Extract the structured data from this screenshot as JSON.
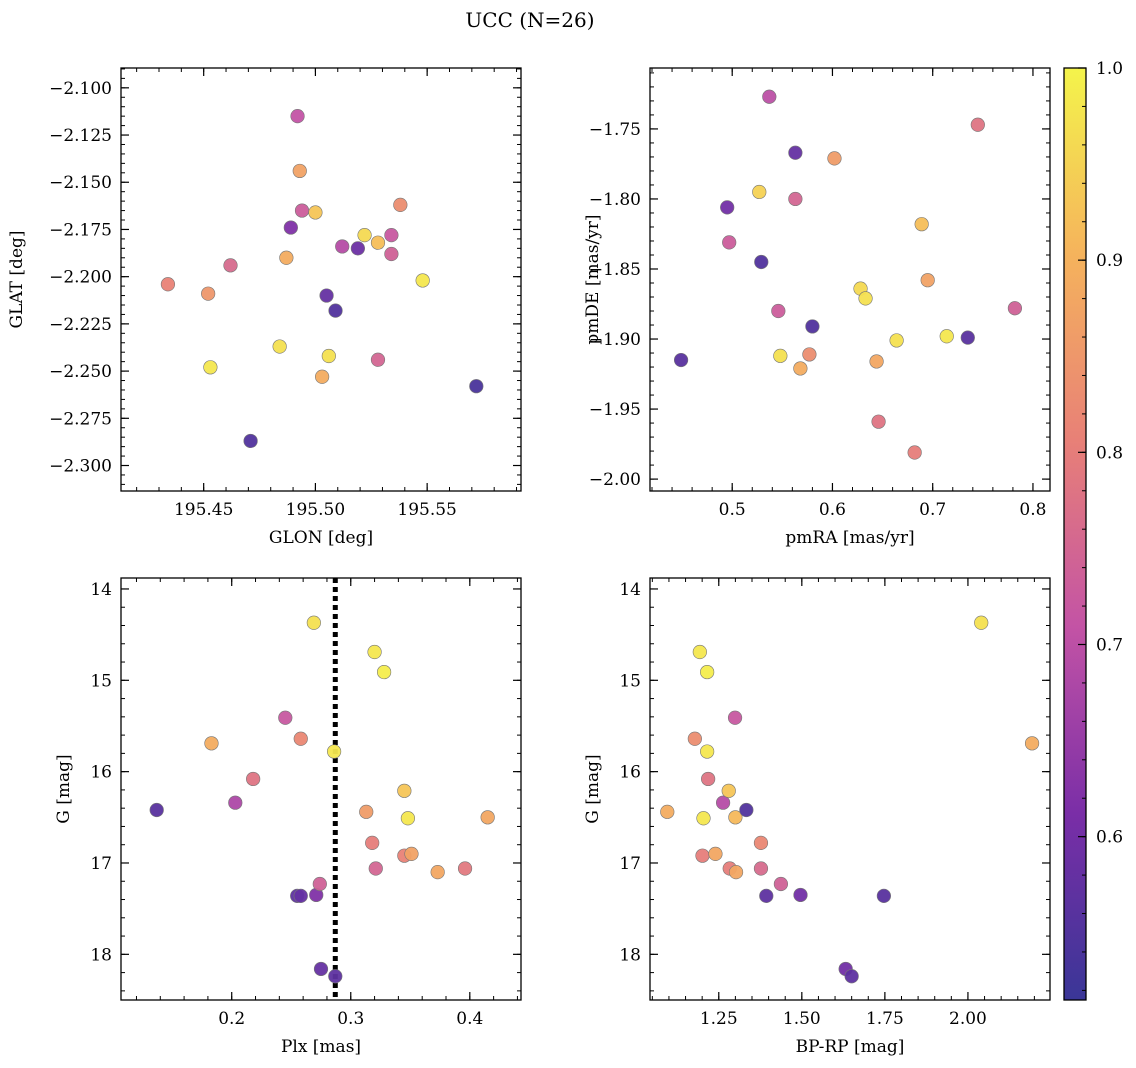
{
  "title": "UCC (N=26)",
  "colormap": {
    "name": "plasma",
    "stops": [
      "#3a3697",
      "#7a2ea7",
      "#c353a5",
      "#e88077",
      "#f5b35c",
      "#f4f44b"
    ],
    "range": [
      0.515,
      1.0
    ],
    "ticks": [
      0.6,
      0.7,
      0.8,
      0.9,
      1.0
    ],
    "tick_labels": [
      "0.6",
      "0.7",
      "0.8",
      "0.9",
      "1.0"
    ]
  },
  "chart_data": [
    {
      "type": "scatter",
      "panel": "glon-glat",
      "xlabel": "GLON [deg]",
      "ylabel": "GLAT [deg]",
      "xlim": [
        195.413,
        195.592
      ],
      "ylim": [
        -2.3135,
        -2.0895
      ],
      "invert_y": false,
      "xticks": [
        195.45,
        195.5,
        195.55
      ],
      "xtick_labels": [
        "195.45",
        "195.50",
        "195.55"
      ],
      "yticks": [
        -2.1,
        -2.125,
        -2.15,
        -2.175,
        -2.2,
        -2.225,
        -2.25,
        -2.275,
        -2.3
      ],
      "ytick_labels": [
        "−2.100",
        "−2.125",
        "−2.150",
        "−2.175",
        "−2.200",
        "−2.225",
        "−2.250",
        "−2.275",
        "−2.300"
      ],
      "points": [
        {
          "x": 195.434,
          "y": -2.204,
          "c": 0.81
        },
        {
          "x": 195.452,
          "y": -2.209,
          "c": 0.85
        },
        {
          "x": 195.453,
          "y": -2.248,
          "c": 0.98
        },
        {
          "x": 195.462,
          "y": -2.194,
          "c": 0.76
        },
        {
          "x": 195.471,
          "y": -2.287,
          "c": 0.55
        },
        {
          "x": 195.484,
          "y": -2.237,
          "c": 0.97
        },
        {
          "x": 195.487,
          "y": -2.19,
          "c": 0.89
        },
        {
          "x": 195.489,
          "y": -2.174,
          "c": 0.62
        },
        {
          "x": 195.492,
          "y": -2.115,
          "c": 0.71
        },
        {
          "x": 195.493,
          "y": -2.144,
          "c": 0.87
        },
        {
          "x": 195.494,
          "y": -2.165,
          "c": 0.73
        },
        {
          "x": 195.5,
          "y": -2.166,
          "c": 0.93
        },
        {
          "x": 195.503,
          "y": -2.253,
          "c": 0.89
        },
        {
          "x": 195.505,
          "y": -2.21,
          "c": 0.58
        },
        {
          "x": 195.506,
          "y": -2.242,
          "c": 0.97
        },
        {
          "x": 195.509,
          "y": -2.218,
          "c": 0.55
        },
        {
          "x": 195.512,
          "y": -2.184,
          "c": 0.69
        },
        {
          "x": 195.519,
          "y": -2.185,
          "c": 0.59
        },
        {
          "x": 195.522,
          "y": -2.178,
          "c": 0.96
        },
        {
          "x": 195.528,
          "y": -2.182,
          "c": 0.92
        },
        {
          "x": 195.528,
          "y": -2.244,
          "c": 0.75
        },
        {
          "x": 195.534,
          "y": -2.178,
          "c": 0.72
        },
        {
          "x": 195.534,
          "y": -2.188,
          "c": 0.74
        },
        {
          "x": 195.538,
          "y": -2.162,
          "c": 0.83
        },
        {
          "x": 195.548,
          "y": -2.202,
          "c": 0.98
        },
        {
          "x": 195.572,
          "y": -2.258,
          "c": 0.54
        }
      ]
    },
    {
      "type": "scatter",
      "panel": "pmra-pmde",
      "xlabel": "pmRA [mas/yr]",
      "ylabel": "pmDE [mas/yr]",
      "xlim": [
        0.418,
        0.817
      ],
      "ylim": [
        -2.0085,
        -1.7065
      ],
      "invert_y": false,
      "xticks": [
        0.5,
        0.6,
        0.7,
        0.8
      ],
      "xtick_labels": [
        "0.5",
        "0.6",
        "0.7",
        "0.8"
      ],
      "yticks": [
        -1.75,
        -1.8,
        -1.85,
        -1.9,
        -1.95,
        -2.0
      ],
      "ytick_labels": [
        "−1.75",
        "−1.80",
        "−1.85",
        "−1.90",
        "−1.95",
        "−2.00"
      ],
      "points": [
        {
          "x": 0.449,
          "y": -1.915,
          "c": 0.56
        },
        {
          "x": 0.495,
          "y": -1.806,
          "c": 0.6
        },
        {
          "x": 0.497,
          "y": -1.831,
          "c": 0.73
        },
        {
          "x": 0.527,
          "y": -1.795,
          "c": 0.95
        },
        {
          "x": 0.529,
          "y": -1.845,
          "c": 0.55
        },
        {
          "x": 0.537,
          "y": -1.727,
          "c": 0.7
        },
        {
          "x": 0.546,
          "y": -1.88,
          "c": 0.73
        },
        {
          "x": 0.548,
          "y": -1.912,
          "c": 0.97
        },
        {
          "x": 0.563,
          "y": -1.767,
          "c": 0.58
        },
        {
          "x": 0.563,
          "y": -1.8,
          "c": 0.75
        },
        {
          "x": 0.568,
          "y": -1.921,
          "c": 0.89
        },
        {
          "x": 0.577,
          "y": -1.911,
          "c": 0.83
        },
        {
          "x": 0.58,
          "y": -1.891,
          "c": 0.55
        },
        {
          "x": 0.602,
          "y": -1.771,
          "c": 0.86
        },
        {
          "x": 0.628,
          "y": -1.864,
          "c": 0.96
        },
        {
          "x": 0.633,
          "y": -1.871,
          "c": 0.97
        },
        {
          "x": 0.644,
          "y": -1.916,
          "c": 0.88
        },
        {
          "x": 0.646,
          "y": -1.959,
          "c": 0.78
        },
        {
          "x": 0.664,
          "y": -1.901,
          "c": 0.97
        },
        {
          "x": 0.682,
          "y": -1.981,
          "c": 0.8
        },
        {
          "x": 0.689,
          "y": -1.818,
          "c": 0.92
        },
        {
          "x": 0.695,
          "y": -1.858,
          "c": 0.87
        },
        {
          "x": 0.714,
          "y": -1.898,
          "c": 0.98
        },
        {
          "x": 0.735,
          "y": -1.899,
          "c": 0.56
        },
        {
          "x": 0.745,
          "y": -1.747,
          "c": 0.78
        },
        {
          "x": 0.782,
          "y": -1.878,
          "c": 0.74
        }
      ]
    },
    {
      "type": "scatter",
      "panel": "plx-g",
      "xlabel": "Plx [mas]",
      "ylabel": "G [mag]",
      "xlim": [
        0.107,
        0.443
      ],
      "ylim": [
        13.88,
        18.5
      ],
      "invert_y": true,
      "vline": {
        "x": 0.287,
        "style": "dotted"
      },
      "xticks": [
        0.2,
        0.3,
        0.4
      ],
      "xtick_labels": [
        "0.2",
        "0.3",
        "0.4"
      ],
      "yticks": [
        14,
        15,
        16,
        17,
        18
      ],
      "ytick_labels": [
        "14",
        "15",
        "16",
        "17",
        "18"
      ],
      "points": [
        {
          "x": 0.137,
          "y": 16.42,
          "c": 0.56
        },
        {
          "x": 0.183,
          "y": 15.69,
          "c": 0.89
        },
        {
          "x": 0.203,
          "y": 16.34,
          "c": 0.68
        },
        {
          "x": 0.218,
          "y": 16.08,
          "c": 0.78
        },
        {
          "x": 0.245,
          "y": 15.41,
          "c": 0.72
        },
        {
          "x": 0.255,
          "y": 17.36,
          "c": 0.57
        },
        {
          "x": 0.258,
          "y": 17.36,
          "c": 0.58
        },
        {
          "x": 0.258,
          "y": 15.64,
          "c": 0.82
        },
        {
          "x": 0.269,
          "y": 14.37,
          "c": 0.97
        },
        {
          "x": 0.271,
          "y": 17.35,
          "c": 0.62
        },
        {
          "x": 0.274,
          "y": 17.23,
          "c": 0.74
        },
        {
          "x": 0.275,
          "y": 18.16,
          "c": 0.58
        },
        {
          "x": 0.286,
          "y": 15.78,
          "c": 0.98
        },
        {
          "x": 0.287,
          "y": 18.24,
          "c": 0.57
        },
        {
          "x": 0.313,
          "y": 16.44,
          "c": 0.86
        },
        {
          "x": 0.318,
          "y": 16.78,
          "c": 0.8
        },
        {
          "x": 0.32,
          "y": 14.69,
          "c": 0.98
        },
        {
          "x": 0.321,
          "y": 17.06,
          "c": 0.75
        },
        {
          "x": 0.328,
          "y": 14.91,
          "c": 0.99
        },
        {
          "x": 0.345,
          "y": 16.21,
          "c": 0.93
        },
        {
          "x": 0.345,
          "y": 16.92,
          "c": 0.81
        },
        {
          "x": 0.348,
          "y": 16.51,
          "c": 0.98
        },
        {
          "x": 0.351,
          "y": 16.9,
          "c": 0.87
        },
        {
          "x": 0.373,
          "y": 17.1,
          "c": 0.88
        },
        {
          "x": 0.396,
          "y": 17.06,
          "c": 0.79
        },
        {
          "x": 0.415,
          "y": 16.5,
          "c": 0.88
        }
      ]
    },
    {
      "type": "scatter",
      "panel": "bprp-g",
      "xlabel": "BP-RP [mag]",
      "ylabel": "G [mag]",
      "xlim": [
        1.043,
        2.247
      ],
      "ylim": [
        13.88,
        18.5
      ],
      "invert_y": true,
      "xticks": [
        1.25,
        1.5,
        1.75,
        2.0
      ],
      "xtick_labels": [
        "1.25",
        "1.50",
        "1.75",
        "2.00"
      ],
      "yticks": [
        14,
        15,
        16,
        17,
        18
      ],
      "ytick_labels": [
        "14",
        "15",
        "16",
        "17",
        "18"
      ],
      "points": [
        {
          "x": 1.095,
          "y": 16.44,
          "c": 0.89
        },
        {
          "x": 1.178,
          "y": 15.64,
          "c": 0.83
        },
        {
          "x": 1.193,
          "y": 14.69,
          "c": 0.98
        },
        {
          "x": 1.201,
          "y": 16.92,
          "c": 0.8
        },
        {
          "x": 1.204,
          "y": 16.51,
          "c": 0.98
        },
        {
          "x": 1.215,
          "y": 14.91,
          "c": 0.99
        },
        {
          "x": 1.215,
          "y": 15.78,
          "c": 0.98
        },
        {
          "x": 1.218,
          "y": 16.08,
          "c": 0.78
        },
        {
          "x": 1.24,
          "y": 16.9,
          "c": 0.88
        },
        {
          "x": 1.263,
          "y": 16.34,
          "c": 0.69
        },
        {
          "x": 1.28,
          "y": 16.21,
          "c": 0.93
        },
        {
          "x": 1.283,
          "y": 17.06,
          "c": 0.8
        },
        {
          "x": 1.299,
          "y": 15.41,
          "c": 0.72
        },
        {
          "x": 1.3,
          "y": 16.5,
          "c": 0.91
        },
        {
          "x": 1.302,
          "y": 17.1,
          "c": 0.88
        },
        {
          "x": 1.333,
          "y": 16.42,
          "c": 0.55
        },
        {
          "x": 1.377,
          "y": 16.78,
          "c": 0.82
        },
        {
          "x": 1.377,
          "y": 17.06,
          "c": 0.76
        },
        {
          "x": 1.393,
          "y": 17.36,
          "c": 0.57
        },
        {
          "x": 1.437,
          "y": 17.23,
          "c": 0.74
        },
        {
          "x": 1.496,
          "y": 17.35,
          "c": 0.6
        },
        {
          "x": 1.632,
          "y": 18.16,
          "c": 0.6
        },
        {
          "x": 1.65,
          "y": 18.24,
          "c": 0.57
        },
        {
          "x": 1.747,
          "y": 17.36,
          "c": 0.56
        },
        {
          "x": 2.04,
          "y": 14.37,
          "c": 0.97
        },
        {
          "x": 2.193,
          "y": 15.69,
          "c": 0.89
        }
      ]
    }
  ]
}
